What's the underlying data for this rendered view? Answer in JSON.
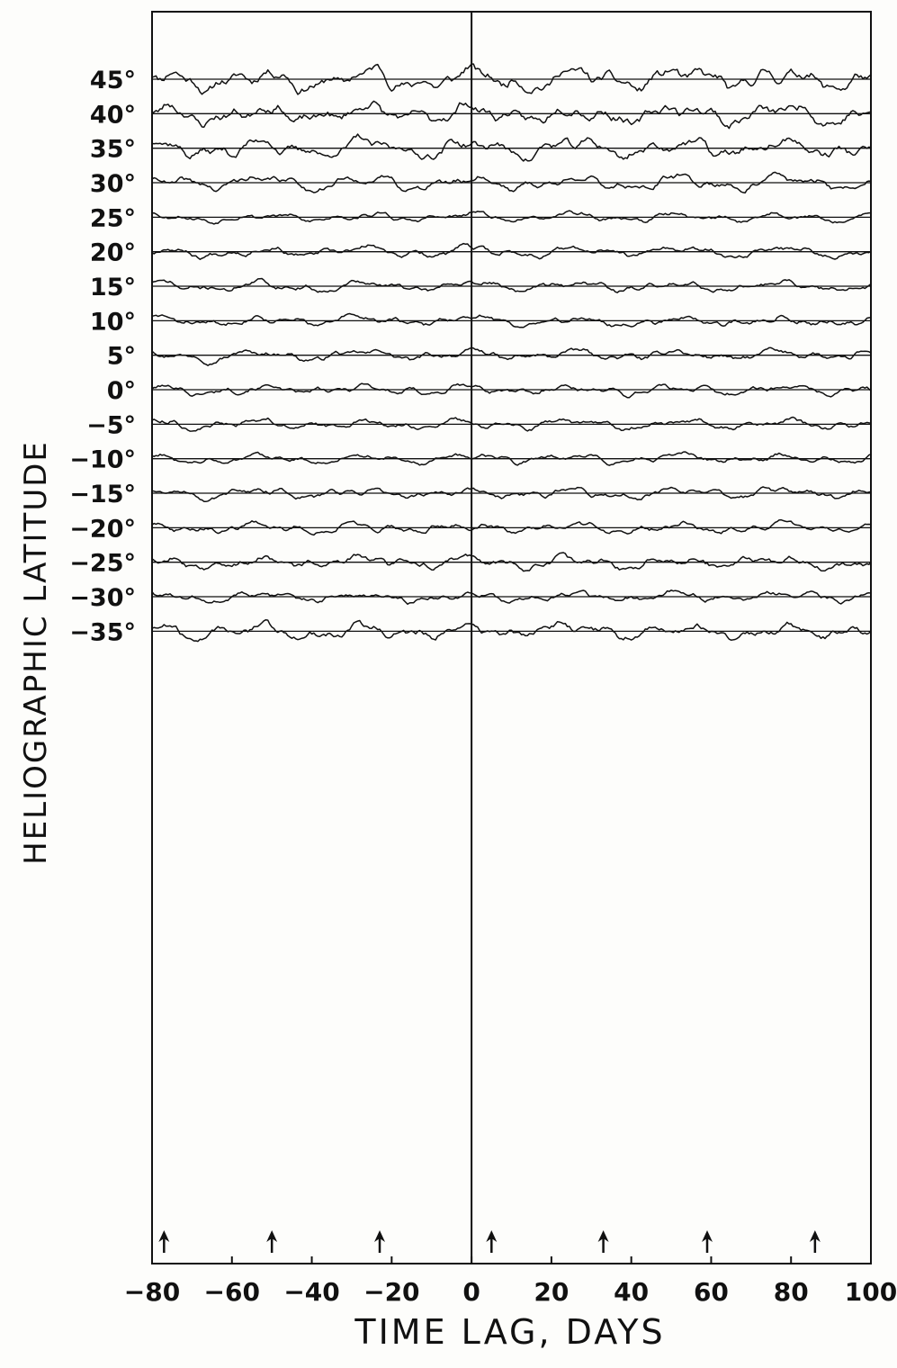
{
  "chart_data": {
    "type": "line",
    "ylabel": "HELIOGRAPHIC LATITUDE",
    "xlabel": "TIME LAG, DAYS",
    "xlim": [
      -80,
      100
    ],
    "x_ticks": [
      -80,
      -60,
      -40,
      -20,
      0,
      20,
      40,
      60,
      80,
      100
    ],
    "x_tick_labels": [
      "−80",
      "−60",
      "−40",
      "−20",
      "0",
      "20",
      "40",
      "60",
      "80",
      "100"
    ],
    "series": [
      {
        "label": "45°",
        "lat": 45,
        "amp": 1.9,
        "seed": 11
      },
      {
        "label": "40°",
        "lat": 40,
        "amp": 1.8,
        "seed": 23
      },
      {
        "label": "35°",
        "lat": 35,
        "amp": 1.6,
        "seed": 37
      },
      {
        "label": "30°",
        "lat": 30,
        "amp": 1.2,
        "seed": 41
      },
      {
        "label": "25°",
        "lat": 25,
        "amp": 0.8,
        "seed": 53
      },
      {
        "label": "20°",
        "lat": 20,
        "amp": 0.9,
        "seed": 67
      },
      {
        "label": "15°",
        "lat": 15,
        "amp": 0.9,
        "seed": 71
      },
      {
        "label": "10°",
        "lat": 10,
        "amp": 0.9,
        "seed": 83
      },
      {
        "label": "5°",
        "lat": 5,
        "amp": 0.9,
        "seed": 97
      },
      {
        "label": "0°",
        "lat": 0,
        "amp": 0.9,
        "seed": 101
      },
      {
        "label": "−5°",
        "lat": -5,
        "amp": 0.9,
        "seed": 113
      },
      {
        "label": "−10°",
        "lat": -10,
        "amp": 0.8,
        "seed": 127
      },
      {
        "label": "−15°",
        "lat": -15,
        "amp": 0.9,
        "seed": 131
      },
      {
        "label": "−20°",
        "lat": -20,
        "amp": 0.9,
        "seed": 149
      },
      {
        "label": "−25°",
        "lat": -25,
        "amp": 1.1,
        "seed": 157
      },
      {
        "label": "−30°",
        "lat": -30,
        "amp": 0.9,
        "seed": 163
      },
      {
        "label": "−35°",
        "lat": -35,
        "amp": 1.3,
        "seed": 179
      }
    ],
    "arrows_x_days": [
      -77,
      -50,
      -23,
      5,
      33,
      59,
      86
    ],
    "zero_line_x": 0
  },
  "colors": {
    "ink": "#111111",
    "background": "#fdfdfb"
  }
}
